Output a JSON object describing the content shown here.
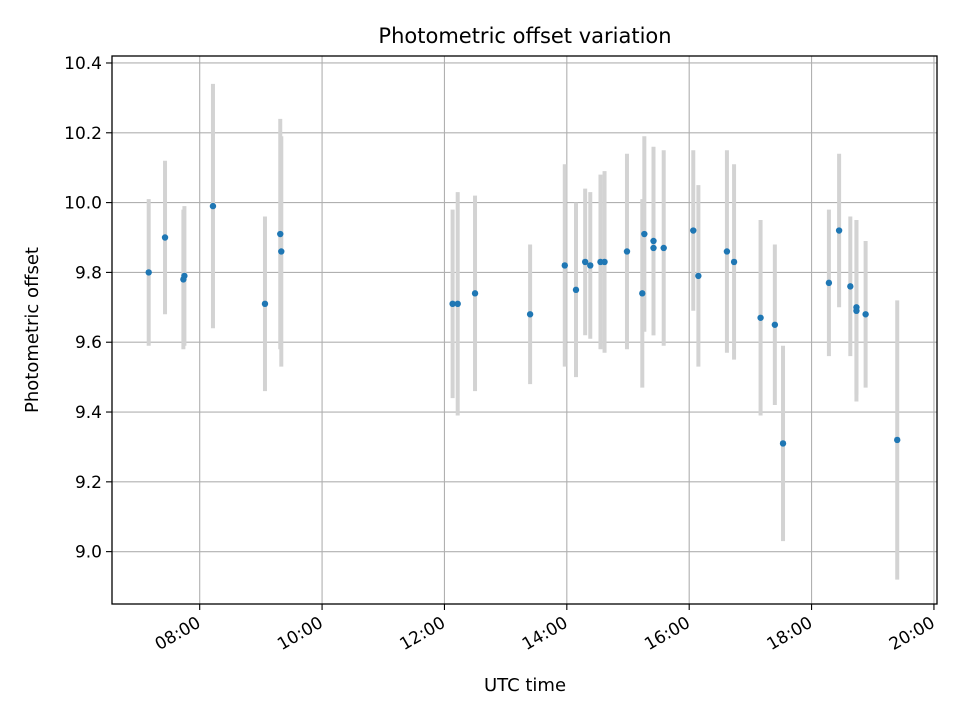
{
  "chart_data": {
    "type": "scatter",
    "title": "Photometric offset variation",
    "xlabel": "UTC time",
    "ylabel": "Photometric offset",
    "xlim": [
      "06:34",
      "20:03"
    ],
    "ylim": [
      8.85,
      10.42
    ],
    "x_ticks": [
      "08:00",
      "10:00",
      "12:00",
      "14:00",
      "16:00",
      "18:00",
      "20:00"
    ],
    "y_ticks": [
      "9.0",
      "9.2",
      "9.4",
      "9.6",
      "9.8",
      "10.0",
      "10.2",
      "10.4"
    ],
    "grid": true,
    "colors": {
      "point": "#1f77b4",
      "errorbar": "#d3d3d3",
      "grid": "#b0b0b0"
    },
    "points": [
      {
        "x": "07:10",
        "y": 9.8,
        "err": 0.21
      },
      {
        "x": "07:26",
        "y": 9.9,
        "err": 0.22
      },
      {
        "x": "07:44",
        "y": 9.78,
        "err": 0.2
      },
      {
        "x": "07:45",
        "y": 9.79,
        "err": 0.2
      },
      {
        "x": "08:13",
        "y": 9.99,
        "err": 0.35
      },
      {
        "x": "09:04",
        "y": 9.71,
        "err": 0.25
      },
      {
        "x": "09:19",
        "y": 9.91,
        "err": 0.33
      },
      {
        "x": "09:20",
        "y": 9.86,
        "err": 0.33
      },
      {
        "x": "12:08",
        "y": 9.71,
        "err": 0.27
      },
      {
        "x": "12:13",
        "y": 9.71,
        "err": 0.32
      },
      {
        "x": "12:30",
        "y": 9.74,
        "err": 0.28
      },
      {
        "x": "13:24",
        "y": 9.68,
        "err": 0.2
      },
      {
        "x": "13:58",
        "y": 9.82,
        "err": 0.29
      },
      {
        "x": "14:09",
        "y": 9.75,
        "err": 0.25
      },
      {
        "x": "14:18",
        "y": 9.83,
        "err": 0.21
      },
      {
        "x": "14:23",
        "y": 9.82,
        "err": 0.21
      },
      {
        "x": "14:33",
        "y": 9.83,
        "err": 0.25
      },
      {
        "x": "14:37",
        "y": 9.83,
        "err": 0.26
      },
      {
        "x": "14:59",
        "y": 9.86,
        "err": 0.28
      },
      {
        "x": "15:14",
        "y": 9.74,
        "err": 0.27
      },
      {
        "x": "15:16",
        "y": 9.91,
        "err": 0.28
      },
      {
        "x": "15:25",
        "y": 9.89,
        "err": 0.27
      },
      {
        "x": "15:25",
        "y": 9.87,
        "err": 0.25
      },
      {
        "x": "15:35",
        "y": 9.87,
        "err": 0.28
      },
      {
        "x": "16:04",
        "y": 9.92,
        "err": 0.23
      },
      {
        "x": "16:09",
        "y": 9.79,
        "err": 0.26
      },
      {
        "x": "16:37",
        "y": 9.86,
        "err": 0.29
      },
      {
        "x": "16:44",
        "y": 9.83,
        "err": 0.28
      },
      {
        "x": "17:10",
        "y": 9.67,
        "err": 0.28
      },
      {
        "x": "17:24",
        "y": 9.65,
        "err": 0.23
      },
      {
        "x": "17:32",
        "y": 9.31,
        "err": 0.28
      },
      {
        "x": "18:17",
        "y": 9.77,
        "err": 0.21
      },
      {
        "x": "18:27",
        "y": 9.92,
        "err": 0.22
      },
      {
        "x": "18:38",
        "y": 9.76,
        "err": 0.2
      },
      {
        "x": "18:44",
        "y": 9.7,
        "err": 0.25
      },
      {
        "x": "18:44",
        "y": 9.69,
        "err": 0.26
      },
      {
        "x": "18:53",
        "y": 9.68,
        "err": 0.21
      },
      {
        "x": "19:24",
        "y": 9.32,
        "err": 0.4
      }
    ]
  }
}
